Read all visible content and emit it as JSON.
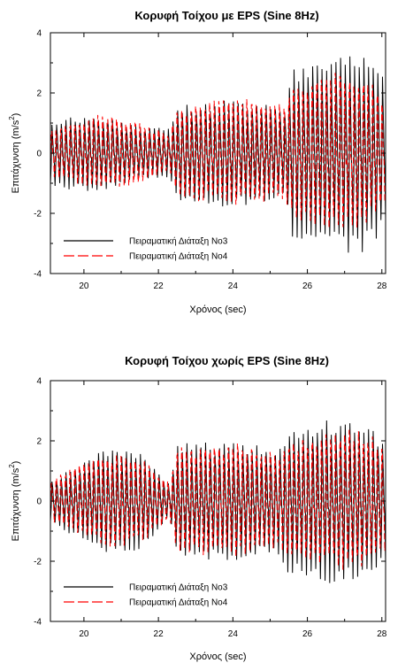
{
  "chart_data": [
    {
      "type": "line",
      "title": "Κορυφή Τοίχου με EPS (Sine 8Hz)",
      "xlabel": "Χρόνος (sec)",
      "ylabel": "Επιτάχυνση (m/s",
      "ylabel_sup": "2",
      "ylabel_close": ")",
      "xlim": [
        19.1,
        28.1
      ],
      "ylim": [
        -4,
        4
      ],
      "xticks": [
        20,
        22,
        24,
        26,
        28
      ],
      "yticks": [
        -4,
        -2,
        0,
        2,
        4
      ],
      "legend_position": "bottom-left",
      "signal_frequency_hz": 8,
      "series": [
        {
          "name": "Πειραματική Διάταξη Νο3",
          "color": "#000000",
          "dash": "solid",
          "envelope": [
            [
              19.1,
              1.1
            ],
            [
              20.3,
              1.3
            ],
            [
              21.5,
              0.9
            ],
            [
              22.3,
              0.8
            ],
            [
              22.5,
              1.6
            ],
            [
              24.0,
              1.8
            ],
            [
              25.4,
              1.5
            ],
            [
              25.6,
              2.8
            ],
            [
              26.5,
              3.1
            ],
            [
              27.4,
              3.4
            ],
            [
              28.1,
              2.5
            ]
          ]
        },
        {
          "name": "Πειραματική Διάταξη Νο4",
          "color": "#ff0000",
          "dash": "dashed",
          "envelope": [
            [
              19.1,
              0.9
            ],
            [
              20.5,
              1.5
            ],
            [
              21.5,
              1.2
            ],
            [
              22.3,
              0.7
            ],
            [
              22.5,
              1.7
            ],
            [
              24.0,
              2.1
            ],
            [
              25.4,
              1.8
            ],
            [
              25.6,
              2.6
            ],
            [
              26.5,
              3.2
            ],
            [
              27.4,
              3.0
            ],
            [
              28.1,
              2.2
            ]
          ]
        }
      ]
    },
    {
      "type": "line",
      "title": "Κορυφή Τοίχου χωρίς EPS (Sine 8Hz)",
      "xlabel": "Χρόνος (sec)",
      "ylabel": "Επιτάχυνση (m/s",
      "ylabel_sup": "2",
      "ylabel_close": ")",
      "xlim": [
        19.1,
        28.1
      ],
      "ylim": [
        -4,
        4
      ],
      "xticks": [
        20,
        22,
        24,
        26,
        28
      ],
      "yticks": [
        -4,
        -2,
        0,
        2,
        4
      ],
      "legend_position": "bottom-left",
      "signal_frequency_hz": 8,
      "series": [
        {
          "name": "Πειραματική Διάταξη Νο3",
          "color": "#000000",
          "dash": "solid",
          "envelope": [
            [
              19.1,
              0.7
            ],
            [
              20.5,
              1.7
            ],
            [
              21.5,
              1.6
            ],
            [
              22.3,
              0.6
            ],
            [
              22.5,
              1.9
            ],
            [
              24.0,
              2.0
            ],
            [
              25.2,
              1.7
            ],
            [
              25.5,
              2.4
            ],
            [
              26.5,
              2.7
            ],
            [
              27.4,
              2.6
            ],
            [
              28.1,
              2.1
            ]
          ]
        },
        {
          "name": "Πειραματική Διάταξη Νο4",
          "color": "#ff0000",
          "dash": "dashed",
          "envelope": [
            [
              19.1,
              0.8
            ],
            [
              20.5,
              1.8
            ],
            [
              21.5,
              1.7
            ],
            [
              22.3,
              0.7
            ],
            [
              22.5,
              2.0
            ],
            [
              24.0,
              2.2
            ],
            [
              25.2,
              1.8
            ],
            [
              25.5,
              2.3
            ],
            [
              26.5,
              2.6
            ],
            [
              27.4,
              2.7
            ],
            [
              28.1,
              2.2
            ]
          ]
        }
      ]
    }
  ]
}
